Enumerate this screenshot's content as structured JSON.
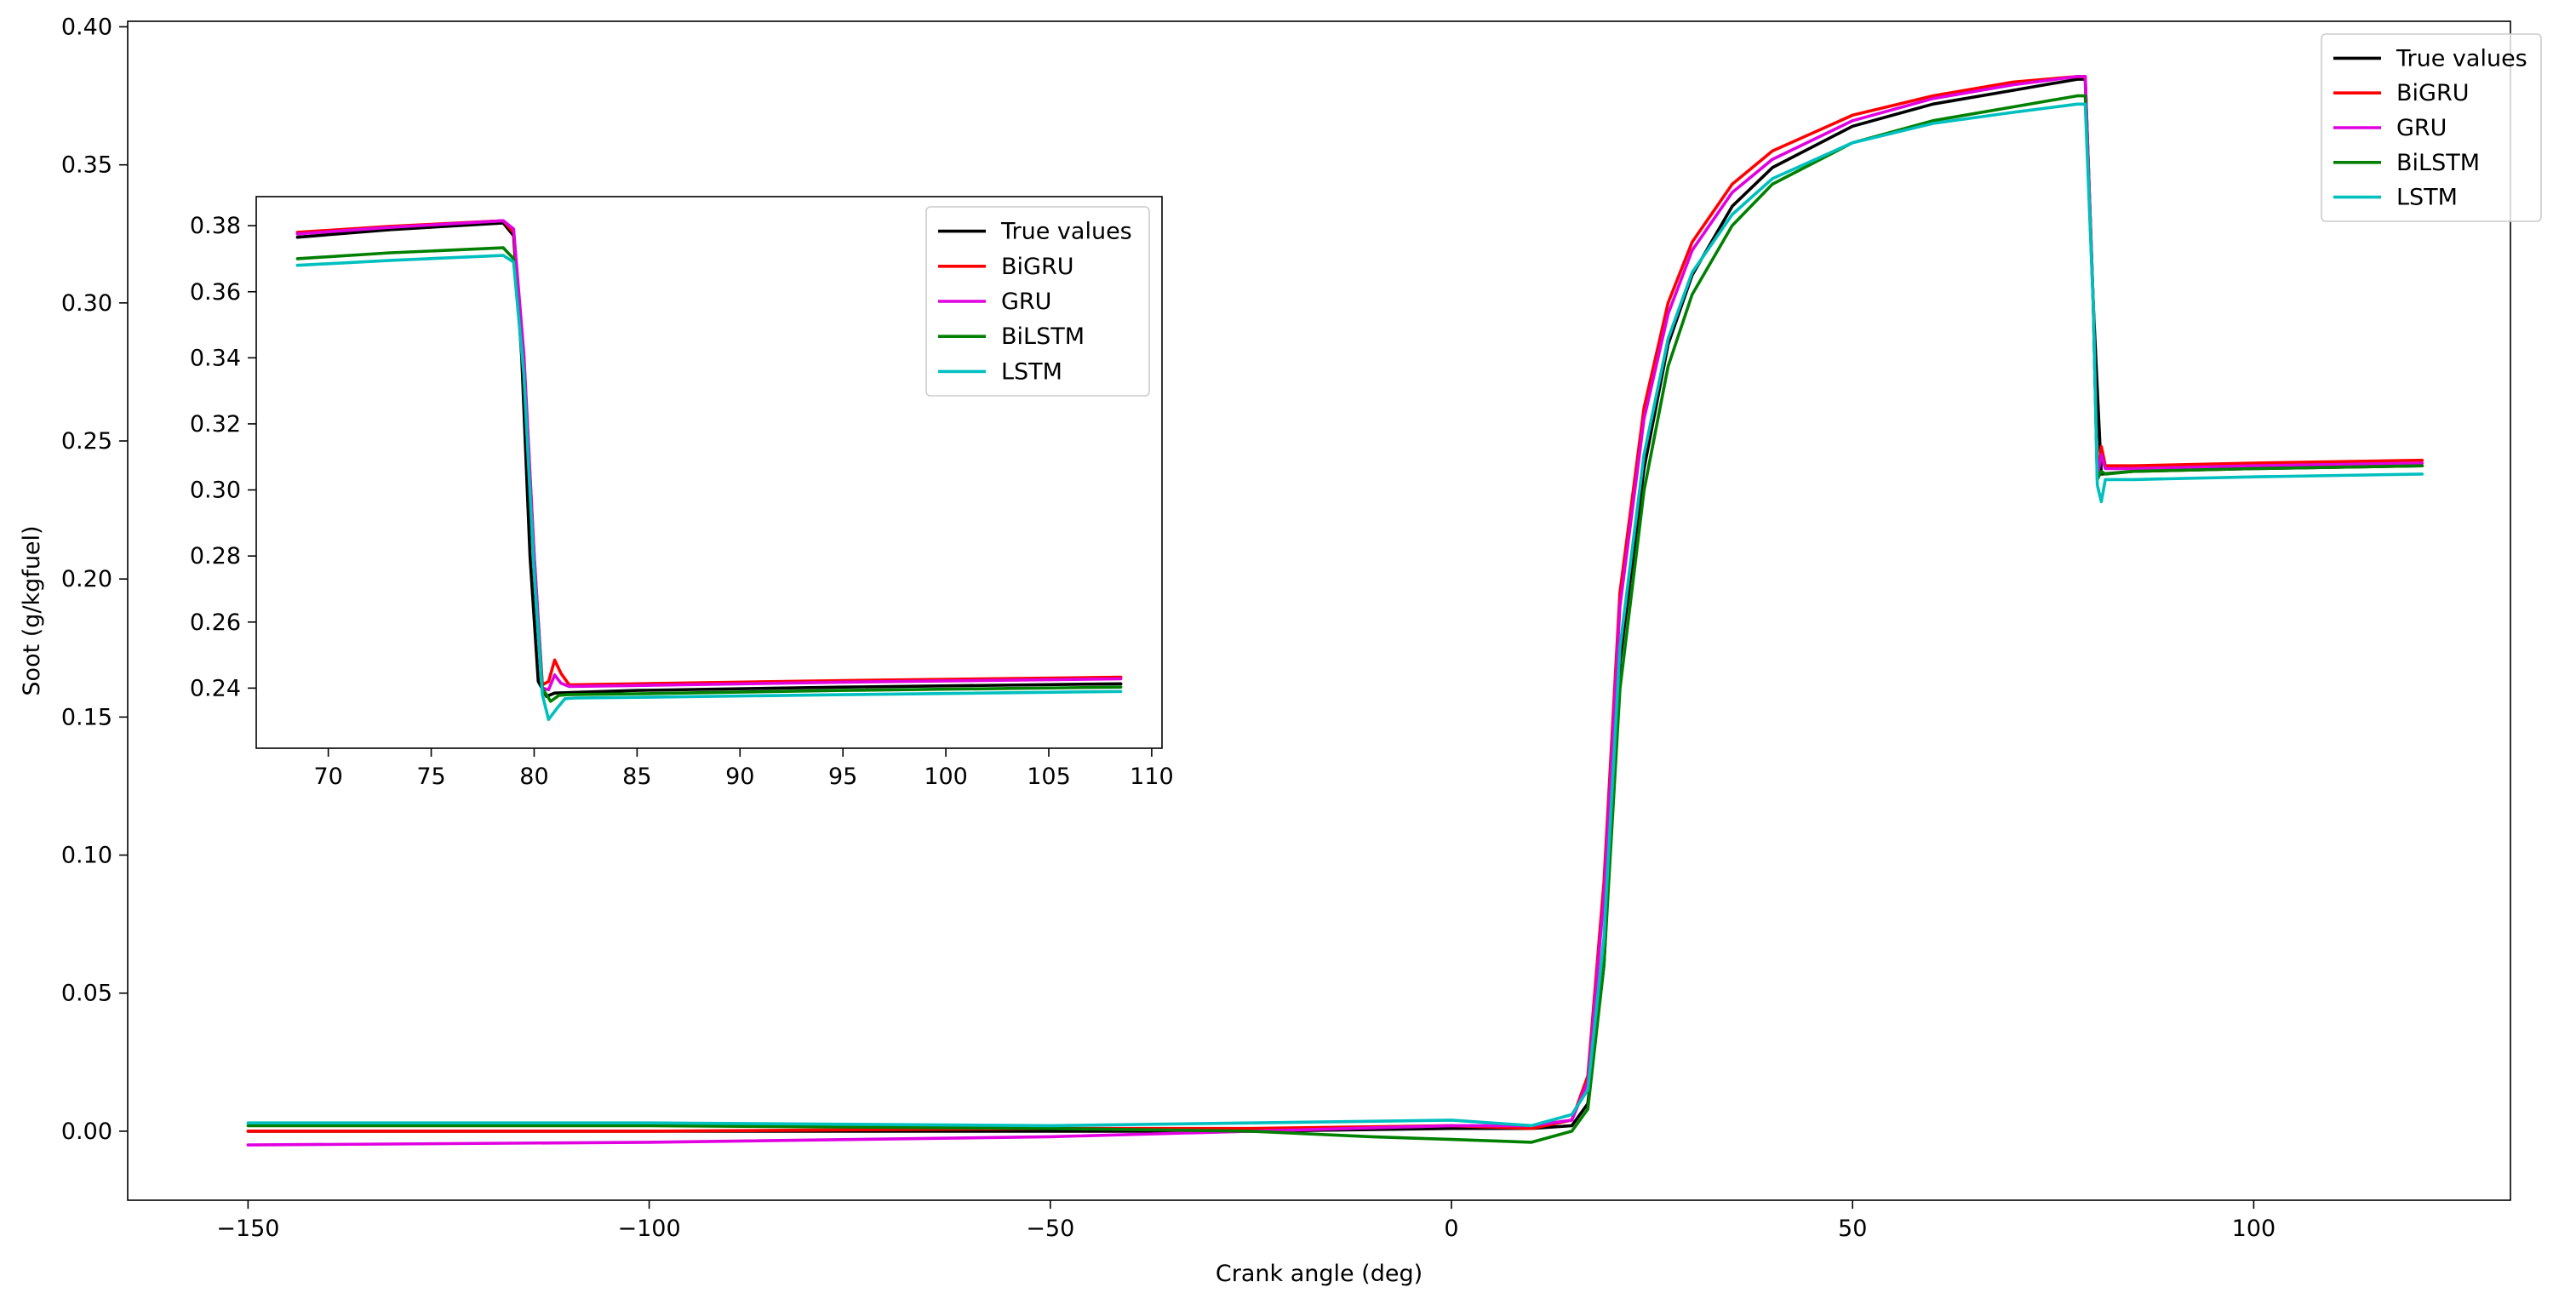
{
  "chart_data": [
    {
      "id": "main",
      "type": "line",
      "title": "",
      "xlabel": "Crank angle (deg)",
      "ylabel": "Soot (g/kgfuel)",
      "xlim": [
        -165,
        132
      ],
      "ylim": [
        -0.025,
        0.402
      ],
      "xticks": [
        -150,
        -100,
        -50,
        0,
        50,
        100
      ],
      "xtick_labels": [
        "−150",
        "−100",
        "−50",
        "0",
        "50",
        "100"
      ],
      "yticks": [
        0.0,
        0.05,
        0.1,
        0.15,
        0.2,
        0.25,
        0.3,
        0.35,
        0.4
      ],
      "ytick_labels": [
        "0.00",
        "0.05",
        "0.10",
        "0.15",
        "0.20",
        "0.25",
        "0.30",
        "0.35",
        "0.40"
      ],
      "grid": false,
      "legend_position": "top-right",
      "series": [
        {
          "name": "True values",
          "color": "#000000",
          "x": [
            -150,
            -100,
            -50,
            -25,
            0,
            10,
            15,
            17,
            19,
            21,
            24,
            27,
            30,
            35,
            40,
            50,
            60,
            70,
            78,
            79,
            80,
            81,
            85,
            100,
            121
          ],
          "y": [
            0.0,
            0.0,
            0.0,
            0.0,
            0.001,
            0.001,
            0.002,
            0.01,
            0.06,
            0.17,
            0.24,
            0.285,
            0.31,
            0.335,
            0.349,
            0.364,
            0.372,
            0.377,
            0.381,
            0.381,
            0.3,
            0.238,
            0.239,
            0.24,
            0.241
          ]
        },
        {
          "name": "BiGRU",
          "color": "#ff0000",
          "x": [
            -150,
            -100,
            -50,
            -25,
            0,
            10,
            15,
            17,
            19,
            21,
            24,
            27,
            30,
            35,
            40,
            50,
            60,
            70,
            78,
            79,
            80,
            80.5,
            81,
            81.5,
            85,
            100,
            121
          ],
          "y": [
            0.0,
            0.0,
            0.001,
            0.001,
            0.002,
            0.001,
            0.004,
            0.02,
            0.09,
            0.195,
            0.262,
            0.3,
            0.322,
            0.343,
            0.355,
            0.368,
            0.375,
            0.38,
            0.382,
            0.382,
            0.3,
            0.237,
            0.248,
            0.241,
            0.241,
            0.242,
            0.243
          ]
        },
        {
          "name": "GRU",
          "color": "#e000e0",
          "x": [
            -150,
            -100,
            -50,
            -25,
            0,
            10,
            15,
            17,
            19,
            21,
            24,
            27,
            30,
            35,
            40,
            50,
            60,
            70,
            78,
            79,
            80,
            80.5,
            81,
            81.5,
            85,
            100,
            121
          ],
          "y": [
            -0.005,
            -0.004,
            -0.002,
            0.0,
            0.002,
            0.002,
            0.004,
            0.018,
            0.085,
            0.19,
            0.258,
            0.296,
            0.319,
            0.34,
            0.352,
            0.366,
            0.374,
            0.379,
            0.382,
            0.382,
            0.3,
            0.237,
            0.245,
            0.24,
            0.24,
            0.241,
            0.242
          ]
        },
        {
          "name": "BiLSTM",
          "color": "#008000",
          "x": [
            -150,
            -100,
            -50,
            -25,
            -10,
            0,
            10,
            15,
            17,
            19,
            21,
            24,
            27,
            30,
            35,
            40,
            50,
            60,
            70,
            78,
            79,
            80,
            80.5,
            81,
            81.5,
            85,
            100,
            121
          ],
          "y": [
            0.002,
            0.002,
            0.001,
            0.0,
            -0.002,
            -0.003,
            -0.004,
            0.0,
            0.008,
            0.06,
            0.16,
            0.232,
            0.277,
            0.303,
            0.328,
            0.343,
            0.358,
            0.366,
            0.371,
            0.375,
            0.375,
            0.3,
            0.236,
            0.239,
            0.238,
            0.239,
            0.24,
            0.241
          ]
        },
        {
          "name": "LSTM",
          "color": "#00bfbf",
          "x": [
            -150,
            -100,
            -50,
            -25,
            0,
            10,
            15,
            17,
            19,
            21,
            24,
            27,
            30,
            35,
            40,
            50,
            60,
            70,
            78,
            79,
            80,
            80.5,
            81,
            81.5,
            85,
            100,
            121
          ],
          "y": [
            0.003,
            0.003,
            0.002,
            0.003,
            0.004,
            0.002,
            0.006,
            0.015,
            0.07,
            0.175,
            0.245,
            0.287,
            0.311,
            0.332,
            0.345,
            0.358,
            0.365,
            0.369,
            0.372,
            0.372,
            0.3,
            0.234,
            0.228,
            0.236,
            0.236,
            0.237,
            0.238
          ]
        }
      ]
    },
    {
      "id": "inset",
      "type": "line",
      "title": "",
      "xlabel": "",
      "ylabel": "",
      "xlim": [
        66.5,
        110.5
      ],
      "ylim": [
        0.2218,
        0.3888
      ],
      "xticks": [
        70,
        75,
        80,
        85,
        90,
        95,
        100,
        105,
        110
      ],
      "xtick_labels": [
        "70",
        "75",
        "80",
        "85",
        "90",
        "95",
        "100",
        "105",
        "110"
      ],
      "yticks": [
        0.24,
        0.26,
        0.28,
        0.3,
        0.32,
        0.34,
        0.36,
        0.38
      ],
      "ytick_labels": [
        "0.24",
        "0.26",
        "0.28",
        "0.30",
        "0.32",
        "0.34",
        "0.36",
        "0.38"
      ],
      "grid": false,
      "legend_position": "top-right",
      "series": [
        {
          "name": "True values",
          "color": "#000000",
          "x": [
            68.5,
            73,
            78.5,
            79.0,
            79.4,
            79.8,
            80.2,
            80.6,
            81,
            85,
            95,
            108.5
          ],
          "y": [
            0.3765,
            0.3788,
            0.3808,
            0.377,
            0.34,
            0.28,
            0.242,
            0.2375,
            0.2385,
            0.2393,
            0.2403,
            0.2413
          ]
        },
        {
          "name": "BiGRU",
          "color": "#ff0000",
          "x": [
            68.5,
            73,
            78.5,
            79.0,
            79.5,
            80.0,
            80.4,
            80.7,
            81.0,
            81.3,
            81.7,
            85,
            95,
            108.5
          ],
          "y": [
            0.378,
            0.3798,
            0.3815,
            0.378,
            0.34,
            0.28,
            0.241,
            0.242,
            0.2485,
            0.2445,
            0.241,
            0.2413,
            0.2423,
            0.2433
          ]
        },
        {
          "name": "GRU",
          "color": "#e000e0",
          "x": [
            68.5,
            73,
            78.5,
            79.0,
            79.5,
            80.0,
            80.4,
            80.7,
            81.0,
            81.3,
            81.7,
            85,
            95,
            108.5
          ],
          "y": [
            0.3775,
            0.3795,
            0.3815,
            0.379,
            0.341,
            0.28,
            0.24,
            0.2395,
            0.244,
            0.2415,
            0.2405,
            0.2408,
            0.2418,
            0.2428
          ]
        },
        {
          "name": "BiLSTM",
          "color": "#008000",
          "x": [
            68.5,
            73,
            78.5,
            79.0,
            79.5,
            80.0,
            80.4,
            80.8,
            81.2,
            81.6,
            85,
            95,
            108.5
          ],
          "y": [
            0.37,
            0.3718,
            0.3733,
            0.37,
            0.335,
            0.275,
            0.24,
            0.236,
            0.2378,
            0.238,
            0.2383,
            0.2393,
            0.2403
          ]
        },
        {
          "name": "LSTM",
          "color": "#00bfbf",
          "x": [
            68.5,
            73,
            78.5,
            79.0,
            79.5,
            80.0,
            80.4,
            80.7,
            81.1,
            81.5,
            82,
            85,
            95,
            108.5
          ],
          "y": [
            0.368,
            0.3695,
            0.371,
            0.369,
            0.335,
            0.275,
            0.238,
            0.2305,
            0.2338,
            0.2368,
            0.237,
            0.2372,
            0.238,
            0.239
          ]
        }
      ]
    }
  ]
}
